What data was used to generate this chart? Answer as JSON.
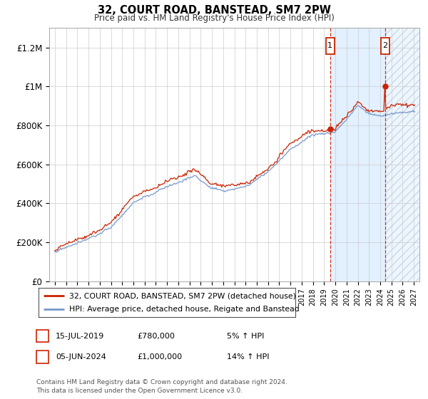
{
  "title": "32, COURT ROAD, BANSTEAD, SM7 2PW",
  "subtitle": "Price paid vs. HM Land Registry's House Price Index (HPI)",
  "legend_line1": "32, COURT ROAD, BANSTEAD, SM7 2PW (detached house)",
  "legend_line2": "HPI: Average price, detached house, Reigate and Banstead",
  "annotation1_date": "15-JUL-2019",
  "annotation1_price": "£780,000",
  "annotation1_pct": "5% ↑ HPI",
  "annotation2_date": "05-JUN-2024",
  "annotation2_price": "£1,000,000",
  "annotation2_pct": "14% ↑ HPI",
  "footer": "Contains HM Land Registry data © Crown copyright and database right 2024.\nThis data is licensed under the Open Government Licence v3.0.",
  "hpi_color": "#7799cc",
  "price_color": "#cc2200",
  "shade_color": "#ddeeff",
  "hatch_color": "#aabbcc",
  "ann_box_color": "#cc2200",
  "dash_color": "#cc2200",
  "ylim": [
    0,
    1300000
  ],
  "yticks": [
    0,
    200000,
    400000,
    600000,
    800000,
    1000000,
    1200000
  ],
  "ytick_labels": [
    "£0",
    "£200K",
    "£400K",
    "£600K",
    "£800K",
    "£1M",
    "£1.2M"
  ],
  "sale1_x": 2019.54,
  "sale1_y": 780000,
  "sale2_x": 2024.43,
  "sale2_y": 1000000,
  "xmin": 1994.5,
  "xmax": 2027.5,
  "shade_start": 2019.54,
  "shade_end": 2024.43,
  "hatch_start": 2024.43,
  "hatch_end": 2027.5
}
